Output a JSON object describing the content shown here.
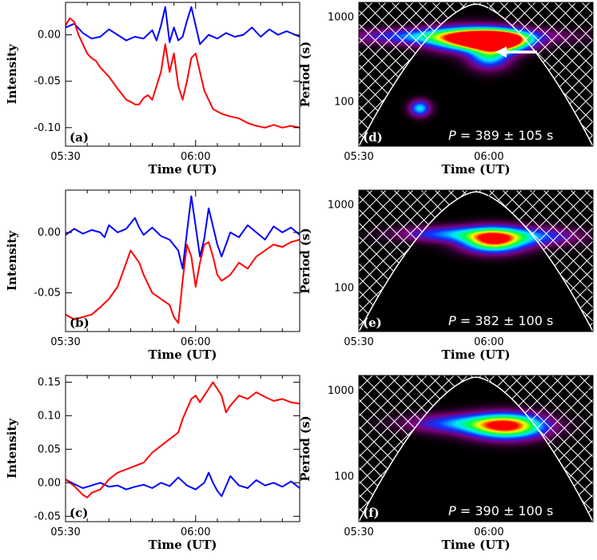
{
  "chart_data": [
    {
      "id": "a",
      "type": "line",
      "panel_label": "(a)",
      "xlabel": "Time (UT)",
      "ylabel": "Intensity",
      "xticks": [
        "05:30",
        "06:00"
      ],
      "xlim": [
        0,
        54
      ],
      "yticks": [
        "0.00",
        "-0.05",
        "-0.10"
      ],
      "ytick_values": [
        0.0,
        -0.05,
        -0.1
      ],
      "ylim": [
        -0.12,
        0.035
      ],
      "series": [
        {
          "color": "#0000ff",
          "points": [
            [
              0,
              0.008
            ],
            [
              2,
              0.012
            ],
            [
              4,
              0.002
            ],
            [
              6,
              -0.004
            ],
            [
              8,
              -0.002
            ],
            [
              10,
              0.006
            ],
            [
              12,
              0.0
            ],
            [
              14,
              -0.006
            ],
            [
              16,
              -0.002
            ],
            [
              18,
              -0.004
            ],
            [
              20,
              0.005
            ],
            [
              21,
              -0.006
            ],
            [
              22,
              0.01
            ],
            [
              23,
              0.03
            ],
            [
              24,
              -0.008
            ],
            [
              25,
              0.008
            ],
            [
              26,
              -0.006
            ],
            [
              27,
              -0.002
            ],
            [
              28,
              0.015
            ],
            [
              29,
              0.03
            ],
            [
              30,
              0.01
            ],
            [
              31,
              -0.01
            ],
            [
              33,
              0.0
            ],
            [
              35,
              -0.004
            ],
            [
              37,
              0.002
            ],
            [
              39,
              -0.002
            ],
            [
              41,
              0.0
            ],
            [
              43,
              0.008
            ],
            [
              45,
              -0.002
            ],
            [
              47,
              0.006
            ],
            [
              49,
              0.0
            ],
            [
              51,
              0.004
            ],
            [
              54,
              -0.002
            ]
          ]
        },
        {
          "color": "#ff0000",
          "points": [
            [
              0,
              0.01
            ],
            [
              1,
              0.018
            ],
            [
              2,
              0.014
            ],
            [
              3,
              0.0
            ],
            [
              4,
              -0.01
            ],
            [
              5,
              -0.02
            ],
            [
              6,
              -0.025
            ],
            [
              7,
              -0.028
            ],
            [
              8,
              -0.035
            ],
            [
              10,
              -0.045
            ],
            [
              12,
              -0.058
            ],
            [
              14,
              -0.07
            ],
            [
              15,
              -0.072
            ],
            [
              16,
              -0.075
            ],
            [
              17,
              -0.075
            ],
            [
              18,
              -0.068
            ],
            [
              19,
              -0.065
            ],
            [
              20,
              -0.07
            ],
            [
              21,
              -0.055
            ],
            [
              22,
              -0.04
            ],
            [
              23,
              -0.01
            ],
            [
              24,
              -0.04
            ],
            [
              25,
              -0.02
            ],
            [
              26,
              -0.055
            ],
            [
              27,
              -0.07
            ],
            [
              28,
              -0.05
            ],
            [
              29,
              -0.025
            ],
            [
              30,
              -0.02
            ],
            [
              31,
              -0.04
            ],
            [
              32,
              -0.06
            ],
            [
              34,
              -0.08
            ],
            [
              36,
              -0.085
            ],
            [
              38,
              -0.088
            ],
            [
              40,
              -0.09
            ],
            [
              42,
              -0.095
            ],
            [
              44,
              -0.098
            ],
            [
              46,
              -0.1
            ],
            [
              48,
              -0.097
            ],
            [
              50,
              -0.1
            ],
            [
              52,
              -0.098
            ],
            [
              54,
              -0.1
            ]
          ]
        }
      ]
    },
    {
      "id": "b",
      "type": "line",
      "panel_label": "(b)",
      "xlabel": "Time (UT)",
      "ylabel": "Intensity",
      "xticks": [
        "05:30",
        "06:00"
      ],
      "xlim": [
        0,
        54
      ],
      "yticks": [
        "0.00",
        "-0.05"
      ],
      "ytick_values": [
        0.0,
        -0.05
      ],
      "ylim": [
        -0.082,
        0.035
      ],
      "series": [
        {
          "color": "#0000ff",
          "points": [
            [
              0,
              -0.002
            ],
            [
              2,
              0.003
            ],
            [
              4,
              -0.001
            ],
            [
              6,
              0.002
            ],
            [
              8,
              0.0
            ],
            [
              9,
              -0.004
            ],
            [
              10,
              0.006
            ],
            [
              12,
              0.0
            ],
            [
              14,
              0.003
            ],
            [
              16,
              0.012
            ],
            [
              17,
              0.004
            ],
            [
              18,
              -0.002
            ],
            [
              20,
              0.004
            ],
            [
              22,
              -0.003
            ],
            [
              24,
              -0.006
            ],
            [
              26,
              -0.015
            ],
            [
              27,
              -0.03
            ],
            [
              28,
              0.0
            ],
            [
              29,
              0.03
            ],
            [
              30,
              0.005
            ],
            [
              31,
              -0.02
            ],
            [
              32,
              -0.005
            ],
            [
              33,
              0.02
            ],
            [
              34,
              0.005
            ],
            [
              35,
              -0.01
            ],
            [
              36,
              -0.02
            ],
            [
              38,
              0.0
            ],
            [
              40,
              -0.004
            ],
            [
              42,
              0.006
            ],
            [
              44,
              0.0
            ],
            [
              46,
              -0.006
            ],
            [
              48,
              0.005
            ],
            [
              50,
              0.0
            ],
            [
              52,
              0.004
            ],
            [
              54,
              -0.002
            ]
          ]
        },
        {
          "color": "#ff0000",
          "points": [
            [
              0,
              -0.068
            ],
            [
              2,
              -0.072
            ],
            [
              4,
              -0.07
            ],
            [
              6,
              -0.068
            ],
            [
              8,
              -0.062
            ],
            [
              10,
              -0.055
            ],
            [
              12,
              -0.045
            ],
            [
              14,
              -0.025
            ],
            [
              15,
              -0.015
            ],
            [
              16,
              -0.02
            ],
            [
              17,
              -0.025
            ],
            [
              18,
              -0.035
            ],
            [
              20,
              -0.05
            ],
            [
              22,
              -0.055
            ],
            [
              24,
              -0.06
            ],
            [
              25,
              -0.07
            ],
            [
              26,
              -0.075
            ],
            [
              27,
              -0.04
            ],
            [
              28,
              -0.01
            ],
            [
              29,
              -0.02
            ],
            [
              30,
              -0.045
            ],
            [
              31,
              -0.025
            ],
            [
              32,
              -0.01
            ],
            [
              33,
              -0.008
            ],
            [
              34,
              -0.02
            ],
            [
              35,
              -0.035
            ],
            [
              36,
              -0.04
            ],
            [
              38,
              -0.035
            ],
            [
              40,
              -0.025
            ],
            [
              42,
              -0.03
            ],
            [
              44,
              -0.02
            ],
            [
              46,
              -0.015
            ],
            [
              48,
              -0.01
            ],
            [
              50,
              -0.012
            ],
            [
              52,
              -0.008
            ],
            [
              54,
              -0.006
            ]
          ]
        }
      ]
    },
    {
      "id": "c",
      "type": "line",
      "panel_label": "(c)",
      "xlabel": "Time (UT)",
      "ylabel": "Intensity",
      "xticks": [
        "05:30",
        "06:00"
      ],
      "xlim": [
        0,
        54
      ],
      "yticks": [
        "0.15",
        "0.10",
        "0.05",
        "0.00",
        "-0.05"
      ],
      "ytick_values": [
        0.15,
        0.1,
        0.05,
        0.0,
        -0.05
      ],
      "ylim": [
        -0.058,
        0.16
      ],
      "series": [
        {
          "color": "#0000ff",
          "points": [
            [
              0,
              0.005
            ],
            [
              2,
              -0.002
            ],
            [
              4,
              -0.008
            ],
            [
              6,
              -0.004
            ],
            [
              8,
              0.0
            ],
            [
              10,
              -0.006
            ],
            [
              12,
              -0.004
            ],
            [
              14,
              -0.01
            ],
            [
              16,
              -0.006
            ],
            [
              18,
              -0.003
            ],
            [
              20,
              -0.008
            ],
            [
              22,
              0.0
            ],
            [
              24,
              -0.005
            ],
            [
              26,
              0.008
            ],
            [
              28,
              -0.004
            ],
            [
              30,
              -0.01
            ],
            [
              32,
              0.0
            ],
            [
              33,
              0.015
            ],
            [
              34,
              0.0
            ],
            [
              35,
              -0.012
            ],
            [
              36,
              -0.02
            ],
            [
              37,
              -0.005
            ],
            [
              38,
              0.01
            ],
            [
              40,
              -0.004
            ],
            [
              42,
              -0.008
            ],
            [
              44,
              0.004
            ],
            [
              46,
              -0.004
            ],
            [
              48,
              0.0
            ],
            [
              50,
              -0.006
            ],
            [
              52,
              0.002
            ],
            [
              54,
              -0.008
            ]
          ]
        },
        {
          "color": "#ff0000",
          "points": [
            [
              0,
              0.005
            ],
            [
              2,
              -0.005
            ],
            [
              4,
              -0.018
            ],
            [
              5,
              -0.022
            ],
            [
              6,
              -0.015
            ],
            [
              8,
              -0.01
            ],
            [
              10,
              0.005
            ],
            [
              12,
              0.015
            ],
            [
              14,
              0.02
            ],
            [
              16,
              0.025
            ],
            [
              18,
              0.03
            ],
            [
              20,
              0.045
            ],
            [
              22,
              0.055
            ],
            [
              24,
              0.065
            ],
            [
              26,
              0.075
            ],
            [
              27,
              0.095
            ],
            [
              28,
              0.11
            ],
            [
              29,
              0.125
            ],
            [
              30,
              0.13
            ],
            [
              31,
              0.12
            ],
            [
              32,
              0.13
            ],
            [
              33,
              0.14
            ],
            [
              34,
              0.15
            ],
            [
              35,
              0.14
            ],
            [
              36,
              0.13
            ],
            [
              37,
              0.105
            ],
            [
              38,
              0.115
            ],
            [
              40,
              0.13
            ],
            [
              42,
              0.125
            ],
            [
              44,
              0.135
            ],
            [
              46,
              0.128
            ],
            [
              48,
              0.122
            ],
            [
              50,
              0.125
            ],
            [
              52,
              0.12
            ],
            [
              54,
              0.118
            ]
          ]
        }
      ]
    },
    {
      "id": "d",
      "type": "heatmap",
      "panel_label": "(d)",
      "xlabel": "Time (UT)",
      "ylabel": "Period (s)",
      "xticks": [
        "05:30",
        "06:00"
      ],
      "xlim": [
        0,
        54
      ],
      "yticks": [
        "1000",
        "100"
      ],
      "ytick_values": [
        1000,
        100
      ],
      "ylim": [
        30,
        1500
      ],
      "y_scale": "log",
      "annotation": {
        "symbol": "P",
        "text": " = 389 ± 105 s"
      },
      "arrow_target": {
        "x": 31.5,
        "period": 389
      },
      "cone_of_influence": true,
      "cross_hatched": true,
      "colormap": [
        "#000000",
        "#7a007a",
        "#1030ff",
        "#00e8ff",
        "#00ff40",
        "#ffff00",
        "#ff0000"
      ],
      "power_peaks": [
        {
          "x": 26,
          "period": 560,
          "sx": 6,
          "slog": 0.09,
          "amp": 0.85
        },
        {
          "x": 30,
          "period": 540,
          "sx": 4.5,
          "slog": 0.06,
          "amp": 1.0
        },
        {
          "x": 33,
          "period": 520,
          "sx": 4,
          "slog": 0.08,
          "amp": 0.75
        },
        {
          "x": 30,
          "period": 360,
          "sx": 3,
          "slog": 0.1,
          "amp": 0.5
        },
        {
          "x": 22,
          "period": 600,
          "sx": 14,
          "slog": 0.06,
          "amp": 0.45
        },
        {
          "x": 14,
          "period": 85,
          "sx": 1.5,
          "slog": 0.06,
          "amp": 0.45
        }
      ]
    },
    {
      "id": "e",
      "type": "heatmap",
      "panel_label": "(e)",
      "xlabel": "Time (UT)",
      "ylabel": "Period (s)",
      "xticks": [
        "05:30",
        "06:00"
      ],
      "xlim": [
        0,
        54
      ],
      "yticks": [
        "1000",
        "100"
      ],
      "ytick_values": [
        1000,
        100
      ],
      "ylim": [
        30,
        1500
      ],
      "y_scale": "log",
      "annotation": {
        "symbol": "P",
        "text": " = 382 ± 100 s"
      },
      "cone_of_influence": true,
      "cross_hatched": true,
      "colormap": [
        "#000000",
        "#7a007a",
        "#1030ff",
        "#00e8ff",
        "#00ff40",
        "#ffff00",
        "#ff0000"
      ],
      "power_peaks": [
        {
          "x": 31,
          "period": 382,
          "sx": 4.5,
          "slog": 0.09,
          "amp": 1.0
        },
        {
          "x": 22,
          "period": 450,
          "sx": 8,
          "slog": 0.06,
          "amp": 0.35
        },
        {
          "x": 40,
          "period": 420,
          "sx": 7,
          "slog": 0.07,
          "amp": 0.3
        }
      ]
    },
    {
      "id": "f",
      "type": "heatmap",
      "panel_label": "(f)",
      "xlabel": "Time (UT)",
      "ylabel": "Period (s)",
      "xticks": [
        "05:30",
        "06:00"
      ],
      "xlim": [
        0,
        54
      ],
      "yticks": [
        "1000",
        "100"
      ],
      "ytick_values": [
        1000,
        100
      ],
      "ylim": [
        30,
        1500
      ],
      "y_scale": "log",
      "annotation": {
        "symbol": "P",
        "text": " = 390 ± 100 s"
      },
      "cone_of_influence": true,
      "cross_hatched": true,
      "colormap": [
        "#000000",
        "#7a007a",
        "#1030ff",
        "#00e8ff",
        "#00ff40",
        "#ffff00",
        "#ff0000"
      ],
      "power_peaks": [
        {
          "x": 34,
          "period": 390,
          "sx": 5.5,
          "slog": 0.09,
          "amp": 1.0
        },
        {
          "x": 24,
          "period": 420,
          "sx": 8,
          "slog": 0.07,
          "amp": 0.35
        }
      ]
    }
  ]
}
